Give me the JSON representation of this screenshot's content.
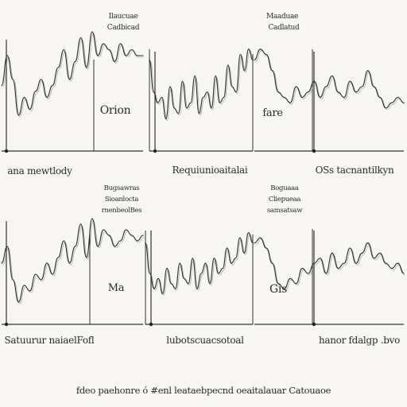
{
  "chart_data": [
    {
      "type": "line",
      "panel": "row1-left",
      "title": "",
      "side_label": "Orion",
      "xlabel": "ana mewtlody",
      "x": [
        0,
        1,
        2,
        3,
        4,
        5,
        6,
        7,
        8,
        9,
        10,
        11,
        12,
        13,
        14,
        15,
        16,
        17,
        18,
        19,
        20,
        21,
        22,
        23,
        24,
        25
      ],
      "series": [
        {
          "values": [
            0.55,
            0.8,
            0.6,
            0.3,
            0.45,
            0.35,
            0.5,
            0.6,
            0.45,
            0.55,
            0.7,
            0.85,
            0.6,
            0.75,
            0.95,
            0.7,
            1.0,
            0.8,
            0.9,
            0.85,
            0.75,
            0.9,
            0.8,
            0.85,
            0.8,
            0.8
          ]
        }
      ]
    },
    {
      "type": "line",
      "panel": "row1-middle",
      "title": "",
      "side_label": "",
      "xlabel": "Requiunioaitalai",
      "x": [
        0,
        1,
        2,
        3,
        4,
        5,
        6,
        7,
        8,
        9,
        10,
        11,
        12,
        13,
        14,
        15,
        16,
        17,
        18,
        19,
        20,
        21,
        22,
        23,
        24,
        25
      ],
      "series": [
        {
          "values": [
            0.85,
            0.55,
            0.45,
            0.5,
            0.3,
            0.6,
            0.4,
            0.35,
            0.65,
            0.4,
            0.45,
            0.7,
            0.35,
            0.5,
            0.55,
            0.4,
            0.7,
            0.45,
            0.5,
            0.8,
            0.6,
            0.55,
            0.9,
            0.75,
            0.95,
            0.85
          ]
        }
      ]
    },
    {
      "type": "line",
      "panel": "row1-right",
      "title": "",
      "side_label": "fare",
      "xlabel": "OSs tacnantilkyn",
      "x": [
        0,
        1,
        2,
        3,
        4,
        5,
        6,
        7,
        8,
        9,
        10,
        11,
        12,
        13,
        14,
        15,
        16,
        17,
        18,
        19,
        20,
        21,
        22,
        23,
        24,
        25
      ],
      "series": [
        {
          "values": [
            0.85,
            0.95,
            0.9,
            0.75,
            0.55,
            0.5,
            0.45,
            0.6,
            0.5,
            0.55,
            0.65,
            0.5,
            0.6,
            0.7,
            0.55,
            0.5,
            0.65,
            0.55,
            0.6,
            0.75,
            0.6,
            0.5,
            0.4,
            0.45,
            0.5,
            0.45
          ]
        }
      ]
    },
    {
      "type": "line",
      "panel": "row2-left",
      "title": "",
      "side_label": "",
      "xlabel": "Satuurur naiaelFofl",
      "x": [
        0,
        1,
        2,
        3,
        4,
        5,
        6,
        7,
        8,
        9,
        10,
        11,
        12,
        13,
        14,
        15,
        16,
        17,
        18,
        19,
        20,
        21,
        22,
        23,
        24,
        25
      ],
      "series": [
        {
          "values": [
            0.55,
            0.7,
            0.4,
            0.2,
            0.35,
            0.3,
            0.45,
            0.4,
            0.55,
            0.45,
            0.6,
            0.75,
            0.55,
            0.7,
            0.9,
            0.6,
            0.95,
            0.7,
            0.85,
            0.8,
            0.7,
            0.75,
            0.85,
            0.8,
            0.75,
            0.8
          ]
        }
      ]
    },
    {
      "type": "line",
      "panel": "row2-middle",
      "title": "",
      "side_label": "Ma",
      "xlabel": "lubotscuacsotoal",
      "x": [
        0,
        1,
        2,
        3,
        4,
        5,
        6,
        7,
        8,
        9,
        10,
        11,
        12,
        13,
        14,
        15,
        16,
        17,
        18,
        19,
        20,
        21,
        22,
        23,
        24,
        25
      ],
      "series": [
        {
          "values": [
            0.8,
            0.5,
            0.35,
            0.45,
            0.3,
            0.55,
            0.4,
            0.35,
            0.6,
            0.45,
            0.4,
            0.65,
            0.35,
            0.5,
            0.6,
            0.4,
            0.65,
            0.5,
            0.55,
            0.75,
            0.6,
            0.65,
            0.85,
            0.7,
            0.9,
            0.8
          ]
        }
      ]
    },
    {
      "type": "line",
      "panel": "row2-right",
      "title": "",
      "side_label": "Gis",
      "xlabel": "hanor fdalgp .bvo",
      "x": [
        0,
        1,
        2,
        3,
        4,
        5,
        6,
        7,
        8,
        9,
        10,
        11,
        12,
        13,
        14,
        15,
        16,
        17,
        18,
        19,
        20,
        21,
        22,
        23,
        24,
        25
      ],
      "series": [
        {
          "values": [
            0.8,
            0.85,
            0.75,
            0.6,
            0.4,
            0.35,
            0.45,
            0.4,
            0.55,
            0.5,
            0.6,
            0.65,
            0.5,
            0.7,
            0.55,
            0.6,
            0.75,
            0.6,
            0.7,
            0.8,
            0.65,
            0.7,
            0.6,
            0.55,
            0.6,
            0.5
          ]
        }
      ]
    }
  ],
  "headers": {
    "row1_a_line1": "Ilaucuae",
    "row1_a_line2": "Cadbicad",
    "row1_b_line1": "Maaduae",
    "row1_b_line2": "Cadlatud",
    "row2_a_line1": "Bugsawras",
    "row2_a_line2": "Sioanlocta",
    "row2_a_line3": "rnenbeolBes",
    "row2_b_line1": "Boguaaa",
    "row2_b_line2": "Cliepueaa",
    "row2_b_line3": "samsatsaw"
  },
  "footer": {
    "caption": "fdeo paehonre ó #enl leataebpecnd oeaitalauar Catouaoe"
  }
}
